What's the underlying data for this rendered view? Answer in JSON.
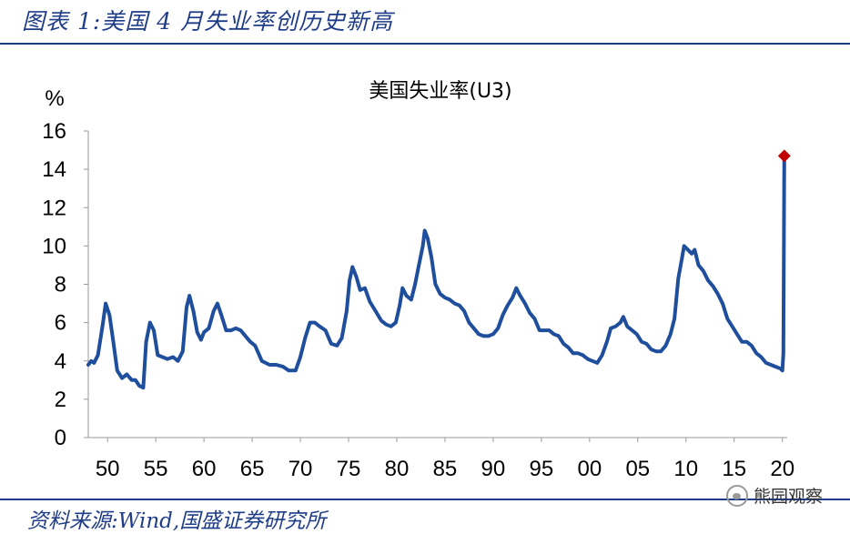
{
  "header": {
    "title": "图表 1:美国 4 月失业率创历史新高"
  },
  "source": {
    "text": "资料来源:Wind,国盛证券研究所"
  },
  "watermark": {
    "text": "熊园观察"
  },
  "chart_data": {
    "type": "line",
    "title": "美国失业率(U3)",
    "ylabel": "%",
    "ylim": [
      0,
      16
    ],
    "xlim": [
      1948,
      2020.5
    ],
    "yticks": [
      0,
      2,
      4,
      6,
      8,
      10,
      12,
      14,
      16
    ],
    "xticks": [
      {
        "value": 1950,
        "label": "50"
      },
      {
        "value": 1955,
        "label": "55"
      },
      {
        "value": 1960,
        "label": "60"
      },
      {
        "value": 1965,
        "label": "65"
      },
      {
        "value": 1970,
        "label": "70"
      },
      {
        "value": 1975,
        "label": "75"
      },
      {
        "value": 1980,
        "label": "80"
      },
      {
        "value": 1985,
        "label": "85"
      },
      {
        "value": 1990,
        "label": "90"
      },
      {
        "value": 1995,
        "label": "95"
      },
      {
        "value": 2000,
        "label": "00"
      },
      {
        "value": 2005,
        "label": "05"
      },
      {
        "value": 2010,
        "label": "10"
      },
      {
        "value": 2015,
        "label": "15"
      },
      {
        "value": 2020,
        "label": "20"
      }
    ],
    "line_color": "#1f4e9c",
    "marker_color": "#c00000",
    "series": [
      {
        "x": [
          1948.0,
          1948.3,
          1948.6,
          1949.0,
          1949.5,
          1949.8,
          1950.2,
          1950.6,
          1951.0,
          1951.5,
          1952.0,
          1952.5,
          1952.9,
          1953.3,
          1953.7,
          1954.0,
          1954.4,
          1954.8,
          1955.2,
          1955.7,
          1956.2,
          1956.8,
          1957.3,
          1957.8,
          1958.2,
          1958.5,
          1958.9,
          1959.3,
          1959.7,
          1960.0,
          1960.5,
          1961.0,
          1961.4,
          1961.8,
          1962.3,
          1962.8,
          1963.3,
          1963.8,
          1964.3,
          1964.8,
          1965.3,
          1966.0,
          1966.8,
          1967.5,
          1968.2,
          1968.8,
          1969.5,
          1970.0,
          1970.5,
          1971.0,
          1971.5,
          1972.0,
          1972.6,
          1973.2,
          1973.8,
          1974.3,
          1974.8,
          1975.1,
          1975.4,
          1975.8,
          1976.2,
          1976.7,
          1977.2,
          1977.8,
          1978.4,
          1978.9,
          1979.4,
          1979.9,
          1980.3,
          1980.6,
          1981.0,
          1981.5,
          1981.9,
          1982.3,
          1982.7,
          1982.9,
          1983.2,
          1983.6,
          1984.0,
          1984.5,
          1985.0,
          1985.5,
          1986.0,
          1986.5,
          1987.0,
          1987.5,
          1988.0,
          1988.5,
          1989.0,
          1989.5,
          1990.0,
          1990.5,
          1991.0,
          1991.5,
          1992.0,
          1992.4,
          1992.8,
          1993.3,
          1993.8,
          1994.3,
          1994.8,
          1995.3,
          1995.8,
          1996.3,
          1996.8,
          1997.3,
          1997.8,
          1998.3,
          1998.8,
          1999.3,
          1999.8,
          2000.3,
          2000.8,
          2001.3,
          2001.8,
          2002.2,
          2002.7,
          2003.2,
          2003.5,
          2003.9,
          2004.4,
          2004.9,
          2005.4,
          2005.9,
          2006.4,
          2006.9,
          2007.4,
          2007.9,
          2008.4,
          2008.8,
          2009.2,
          2009.6,
          2009.8,
          2010.2,
          2010.6,
          2010.9,
          2011.3,
          2011.8,
          2012.3,
          2012.8,
          2013.3,
          2013.8,
          2014.3,
          2014.8,
          2015.3,
          2015.8,
          2016.3,
          2016.8,
          2017.3,
          2017.8,
          2018.3,
          2018.8,
          2019.3,
          2019.8,
          2020.0,
          2020.1,
          2020.2
        ],
        "values": [
          3.8,
          4.0,
          3.9,
          4.3,
          5.9,
          7.0,
          6.4,
          5.0,
          3.5,
          3.1,
          3.3,
          3.0,
          3.0,
          2.7,
          2.6,
          5.0,
          6.0,
          5.6,
          4.3,
          4.2,
          4.1,
          4.2,
          4.0,
          4.5,
          6.8,
          7.4,
          6.6,
          5.5,
          5.1,
          5.5,
          5.7,
          6.6,
          7.0,
          6.4,
          5.6,
          5.6,
          5.7,
          5.6,
          5.3,
          5.0,
          4.8,
          4.0,
          3.8,
          3.8,
          3.7,
          3.5,
          3.5,
          4.2,
          5.2,
          6.0,
          6.0,
          5.8,
          5.6,
          4.9,
          4.8,
          5.2,
          6.6,
          8.2,
          8.9,
          8.4,
          7.7,
          7.8,
          7.1,
          6.6,
          6.1,
          5.9,
          5.8,
          6.0,
          6.9,
          7.8,
          7.4,
          7.2,
          8.0,
          9.0,
          10.0,
          10.8,
          10.4,
          9.4,
          8.0,
          7.5,
          7.3,
          7.2,
          7.0,
          6.9,
          6.6,
          6.0,
          5.7,
          5.4,
          5.3,
          5.3,
          5.4,
          5.7,
          6.4,
          6.9,
          7.3,
          7.8,
          7.4,
          7.0,
          6.5,
          6.2,
          5.6,
          5.6,
          5.6,
          5.4,
          5.3,
          4.9,
          4.7,
          4.4,
          4.4,
          4.3,
          4.1,
          4.0,
          3.9,
          4.3,
          5.0,
          5.7,
          5.8,
          6.0,
          6.3,
          5.8,
          5.6,
          5.4,
          5.0,
          4.9,
          4.6,
          4.5,
          4.5,
          4.8,
          5.4,
          6.2,
          8.3,
          9.4,
          10.0,
          9.8,
          9.6,
          9.8,
          9.0,
          8.7,
          8.2,
          7.9,
          7.5,
          7.0,
          6.2,
          5.8,
          5.4,
          5.0,
          5.0,
          4.8,
          4.4,
          4.2,
          3.9,
          3.8,
          3.7,
          3.6,
          3.5,
          4.4,
          14.7
        ]
      }
    ],
    "highlight_point": {
      "x": 2020.2,
      "value": 14.7
    }
  }
}
